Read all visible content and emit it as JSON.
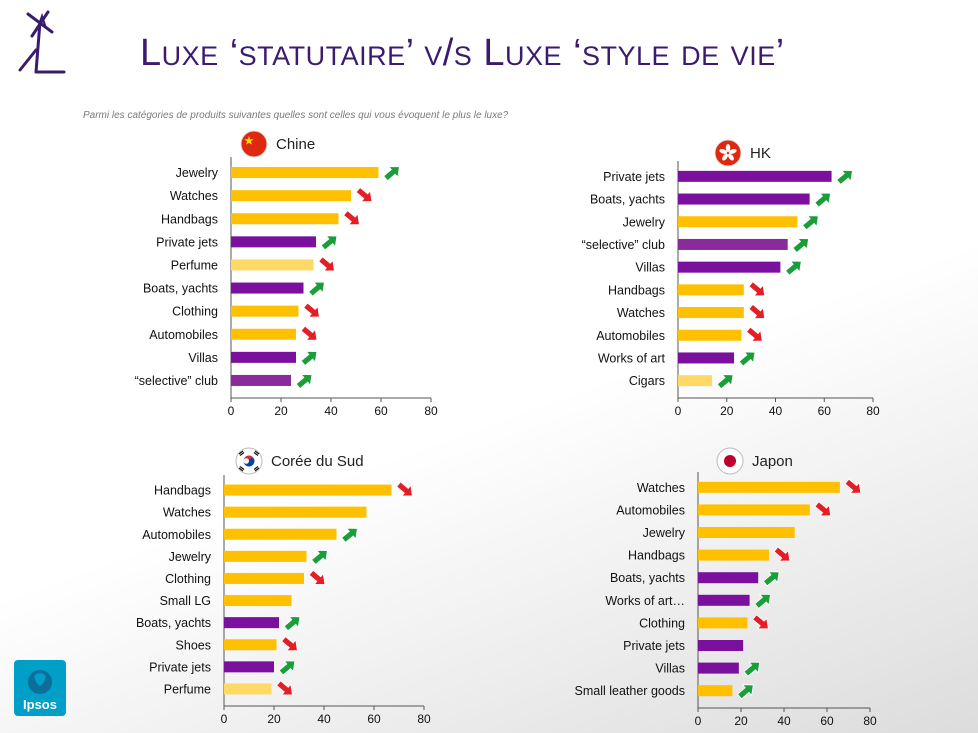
{
  "page": {
    "title": "Luxe ‘statutaire’ v/s Luxe ‘style de vie’",
    "question": "Parmi les catégories de produits suivantes quelles sont celles qui vous évoquent le plus le luxe?",
    "brand": "Ipsos"
  },
  "colors": {
    "orange": "#ffc000",
    "purple": "#7b0f9e",
    "light_orange": "#ffd966",
    "medium_purple": "#8a2b9c",
    "up_arrow": "#1a9e3a",
    "down_arrow": "#e31e24"
  },
  "chart_data": [
    {
      "type": "bar",
      "country": "Chine",
      "flag": "china-flag",
      "xlim": [
        0,
        80
      ],
      "xticks": [
        "0",
        "20",
        "40",
        "60",
        "80"
      ],
      "categories": [
        "Jewelry",
        "Watches",
        "Handbags",
        "Private jets",
        "Perfume",
        "Boats, yachts",
        "Clothing",
        "Automobiles",
        "Villas",
        "“selective” club"
      ],
      "values": [
        59,
        48,
        43,
        34,
        33,
        29,
        27,
        26,
        26,
        24
      ],
      "bar_colors": [
        "orange",
        "orange",
        "orange",
        "purple",
        "light_orange",
        "purple",
        "orange",
        "orange",
        "purple",
        "medium_purple"
      ],
      "trend": [
        "up",
        "down",
        "down",
        "up",
        "down",
        "up",
        "down",
        "down",
        "up",
        "up"
      ]
    },
    {
      "type": "bar",
      "country": "HK",
      "flag": "hong-kong-flag",
      "xlim": [
        0,
        80
      ],
      "xticks": [
        "0",
        "20",
        "40",
        "60",
        "80"
      ],
      "categories": [
        "Private jets",
        "Boats, yachts",
        "Jewelry",
        "“selective” club",
        "Villas",
        "Handbags",
        "Watches",
        "Automobiles",
        "Works of art",
        "Cigars"
      ],
      "values": [
        63,
        54,
        49,
        45,
        42,
        27,
        27,
        26,
        23,
        14
      ],
      "bar_colors": [
        "purple",
        "purple",
        "orange",
        "medium_purple",
        "purple",
        "orange",
        "orange",
        "orange",
        "purple",
        "light_orange"
      ],
      "trend": [
        "up",
        "up",
        "up",
        "up",
        "up",
        "down",
        "down",
        "down",
        "up",
        "up"
      ]
    },
    {
      "type": "bar",
      "country": "Corée du Sud",
      "flag": "south-korea-flag",
      "xlim": [
        0,
        80
      ],
      "xticks": [
        "0",
        "20",
        "40",
        "60",
        "80"
      ],
      "categories": [
        "Handbags",
        "Watches",
        "Automobiles",
        "Jewelry",
        "Clothing",
        "Small LG",
        "Boats, yachts",
        "Shoes",
        "Private jets",
        "Perfume"
      ],
      "values": [
        67,
        57,
        45,
        33,
        32,
        27,
        22,
        21,
        20,
        19
      ],
      "bar_colors": [
        "orange",
        "orange",
        "orange",
        "orange",
        "orange",
        "orange",
        "purple",
        "orange",
        "purple",
        "light_orange"
      ],
      "trend": [
        "down",
        "none",
        "up",
        "up",
        "down",
        "none",
        "up",
        "down",
        "up",
        "down"
      ]
    },
    {
      "type": "bar",
      "country": "Japon",
      "flag": "japan-flag",
      "xlim": [
        0,
        80
      ],
      "xticks": [
        "0",
        "20",
        "40",
        "60",
        "80"
      ],
      "categories": [
        "Watches",
        "Automobiles",
        "Jewelry",
        "Handbags",
        "Boats, yachts",
        "Works of art…",
        "Clothing",
        "Private jets",
        "Villas",
        "Small leather goods"
      ],
      "values": [
        66,
        52,
        45,
        33,
        28,
        24,
        23,
        21,
        19,
        16
      ],
      "bar_colors": [
        "orange",
        "orange",
        "orange",
        "orange",
        "purple",
        "purple",
        "orange",
        "purple",
        "purple",
        "orange"
      ],
      "trend": [
        "down",
        "down",
        "none",
        "down",
        "up",
        "up",
        "down",
        "none",
        "up",
        "up"
      ]
    }
  ]
}
